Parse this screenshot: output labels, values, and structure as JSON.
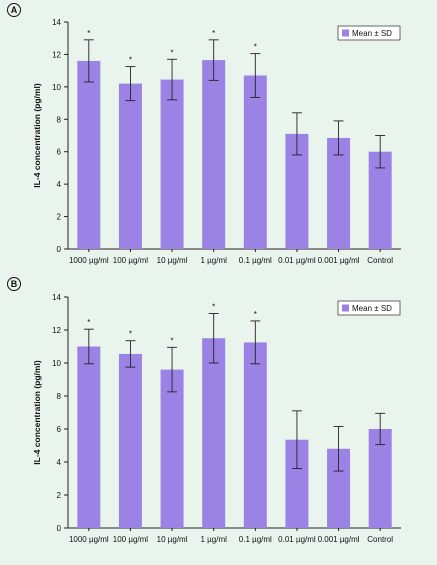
{
  "chart_data": [
    {
      "type": "bar",
      "panel_label": "A",
      "categories": [
        "1000 µg/ml",
        "100 µg/ml",
        "10 µg/ml",
        "1 µg/ml",
        "0.1 µg/ml",
        "0.01 µg/ml",
        "0.001 µg/ml",
        "Control"
      ],
      "series": [
        {
          "name": "Mean ± SD",
          "values": [
            11.6,
            10.2,
            10.45,
            11.65,
            10.7,
            7.1,
            6.85,
            6.0
          ],
          "sd": [
            1.3,
            1.05,
            1.25,
            1.25,
            1.35,
            1.3,
            1.05,
            1.0
          ]
        }
      ],
      "significance": [
        "*",
        "*",
        "*",
        "*",
        "*",
        "",
        "",
        ""
      ],
      "ylabel": "IL-4 concentration (pg/ml)",
      "ylim": [
        0,
        14
      ],
      "yticks": [
        0,
        2,
        4,
        6,
        8,
        10,
        12,
        14
      ],
      "legend_position": "top-right",
      "grid": false,
      "bar_color": "#9b83e6"
    },
    {
      "type": "bar",
      "panel_label": "B",
      "categories": [
        "1000 µg/ml",
        "100 µg/ml",
        "10 µg/ml",
        "1 µg/ml",
        "0.1 µg/ml",
        "0.01 µg/ml",
        "0.001 µg/ml",
        "Control"
      ],
      "series": [
        {
          "name": "Mean ± SD",
          "values": [
            11.0,
            10.55,
            9.6,
            11.5,
            11.25,
            5.35,
            4.8,
            6.0
          ],
          "sd": [
            1.05,
            0.8,
            1.35,
            1.5,
            1.3,
            1.75,
            1.35,
            0.95
          ]
        }
      ],
      "significance": [
        "*",
        "*",
        "*",
        "*",
        "*",
        "",
        "",
        ""
      ],
      "ylabel": "IL-4 concentration (pg/ml)",
      "ylim": [
        0,
        14
      ],
      "yticks": [
        0,
        2,
        4,
        6,
        8,
        10,
        12,
        14
      ],
      "legend_position": "top-right",
      "grid": false,
      "bar_color": "#9b83e6"
    }
  ]
}
